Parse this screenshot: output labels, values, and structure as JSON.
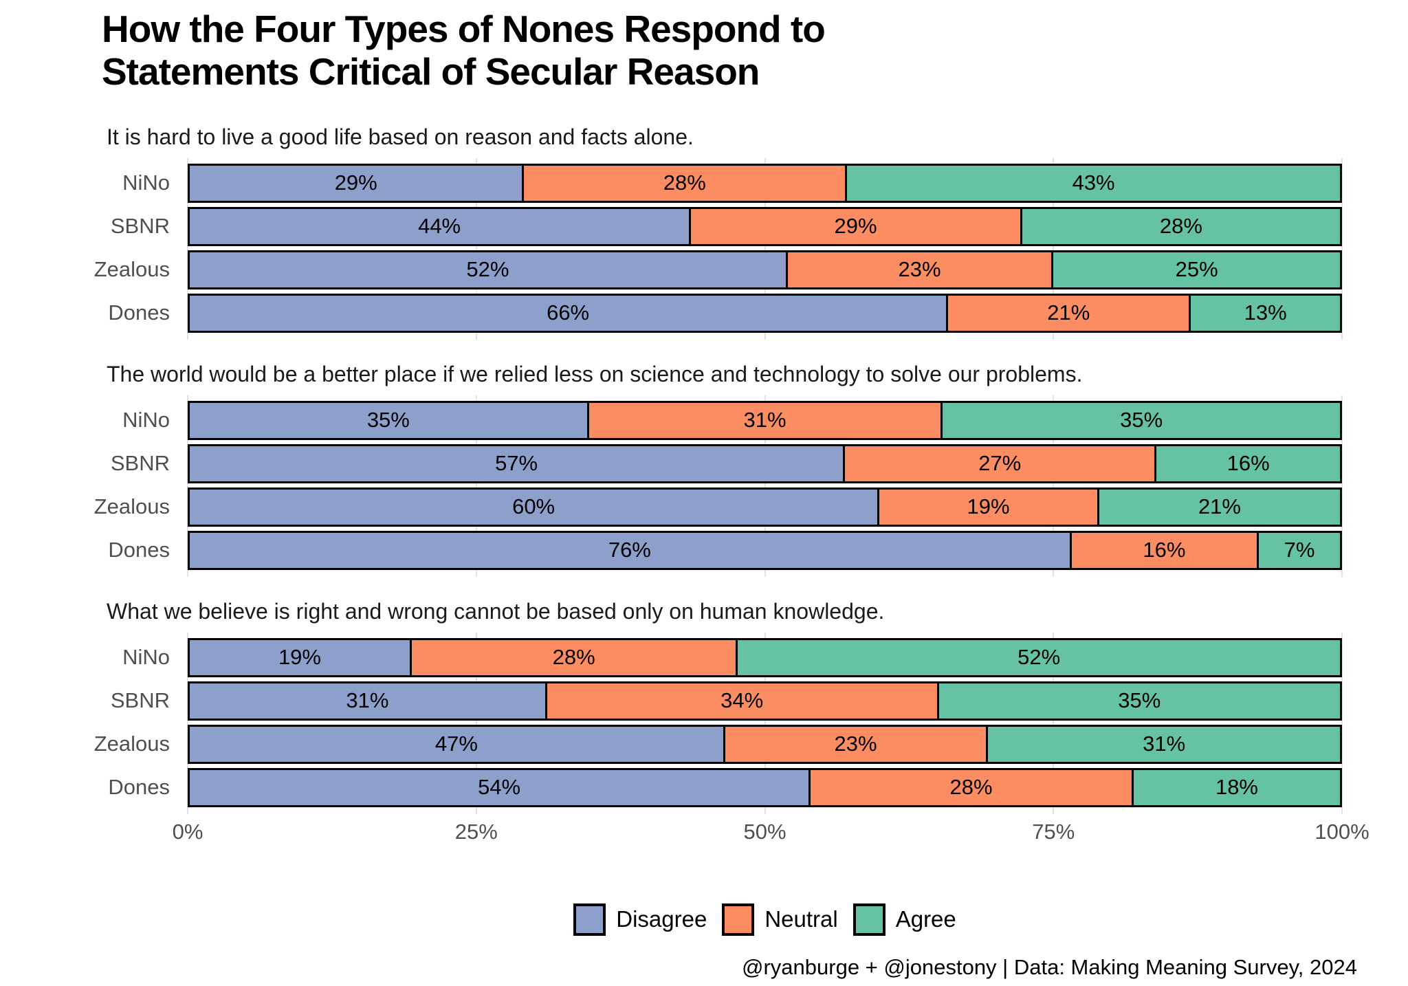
{
  "page": {
    "title": "How the Four Types of Nones Respond to Statements Critical of Secular Reason",
    "caption": "@ryanburge + @jonestony | Data: Making Meaning Survey, 2024"
  },
  "chart_data": {
    "type": "bar",
    "orientation": "horizontal",
    "stacked": true,
    "normalized_to_100_percent": true,
    "unit": "%",
    "categories": [
      "NiNo",
      "SBNR",
      "Zealous",
      "Dones"
    ],
    "series": [
      {
        "name": "Disagree",
        "color": "#8DA0CB"
      },
      {
        "name": "Neutral",
        "color": "#FC8D62"
      },
      {
        "name": "Agree",
        "color": "#66C2A5"
      }
    ],
    "x_ticks": [
      "0%",
      "25%",
      "50%",
      "75%",
      "100%"
    ],
    "x_tick_positions": [
      0,
      25,
      50,
      75,
      100
    ],
    "xlim": [
      0,
      100
    ],
    "grid": "vertical-light",
    "legend_position": "bottom-center",
    "panels": [
      {
        "statement": "It is hard to live a good life based on reason and facts alone.",
        "rows": [
          [
            29,
            28,
            43
          ],
          [
            44,
            29,
            28
          ],
          [
            52,
            23,
            25
          ],
          [
            66,
            21,
            13
          ]
        ]
      },
      {
        "statement": "The world would be a better place if we relied less on science and technology to solve our problems.",
        "rows": [
          [
            35,
            31,
            35
          ],
          [
            57,
            27,
            16
          ],
          [
            60,
            19,
            21
          ],
          [
            76,
            16,
            7
          ]
        ]
      },
      {
        "statement": "What we believe is right and wrong cannot be based only on human knowledge.",
        "rows": [
          [
            19,
            28,
            52
          ],
          [
            31,
            34,
            35
          ],
          [
            47,
            23,
            31
          ],
          [
            54,
            28,
            18
          ]
        ]
      }
    ]
  }
}
